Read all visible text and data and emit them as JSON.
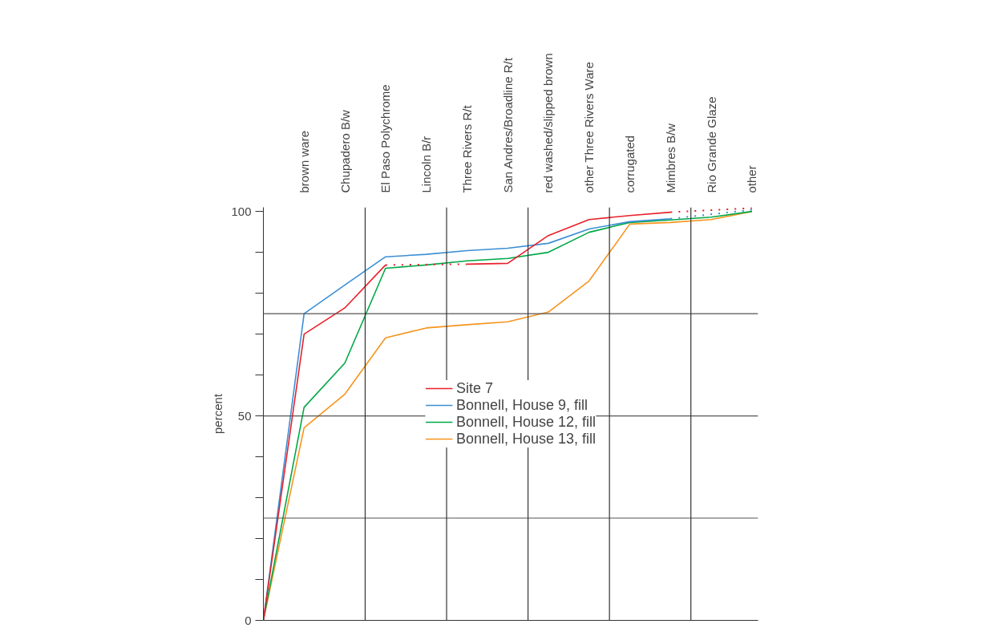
{
  "chart_data": {
    "type": "line",
    "ylabel": "percent",
    "categories": [
      null,
      "brown ware",
      "Chupadero B/w",
      "El Paso Polychrome",
      "Lincoln B/r",
      "Three Rivers R/t",
      "San Andres/Broadline R/t",
      "red washed/slipped brown",
      "other Three Rivers Ware",
      "corrugated",
      "Mimbres B/w",
      "Rio Grande Glaze",
      "other"
    ],
    "series": [
      {
        "name": "Site 7",
        "color": "#e8202a",
        "values": [
          0,
          70,
          76.4,
          86.9,
          null,
          87.1,
          87.3,
          94.1,
          98.0,
          99.0,
          99.8,
          null,
          100.8
        ]
      },
      {
        "name": "Bonnell, House 9, fill",
        "color": "#3b8fd4",
        "values": [
          0,
          75,
          82,
          88.9,
          89.5,
          90.4,
          91.0,
          92.2,
          95.7,
          97.5,
          98.2,
          null,
          100.4
        ]
      },
      {
        "name": "Bonnell, House 12, fill",
        "color": "#00a846",
        "values": [
          0,
          52.1,
          62.9,
          86.1,
          86.9,
          87.9,
          88.5,
          90.0,
          94.9,
          97.3,
          97.9,
          98.6,
          100
        ]
      },
      {
        "name": "Bonnell, House 13, fill",
        "color": "#f7941d",
        "values": [
          0,
          47.1,
          55.3,
          69.1,
          71.5,
          72.3,
          73.0,
          75.4,
          83.0,
          96.9,
          97.3,
          98.0,
          100
        ]
      }
    ],
    "ylim": [
      0,
      101
    ],
    "yticks": [
      0,
      {
        "value": 10,
        "label": null
      },
      {
        "value": 20,
        "label": null
      },
      {
        "value": 30,
        "label": null
      },
      {
        "value": 40,
        "label": null
      },
      50,
      {
        "value": 60,
        "label": null
      },
      {
        "value": 70,
        "label": null
      },
      {
        "value": 80,
        "label": null
      },
      {
        "value": 90,
        "label": null
      },
      100
    ],
    "ref_lines": [
      {
        "axis": "y",
        "value": 25,
        "color": "#555555"
      },
      {
        "axis": "y",
        "value": 50,
        "color": "#555555"
      },
      {
        "axis": "y",
        "value": 75,
        "color": "#555555"
      }
    ],
    "grid": false,
    "legend": "center",
    "marker": "none",
    "line_style": "solid"
  }
}
